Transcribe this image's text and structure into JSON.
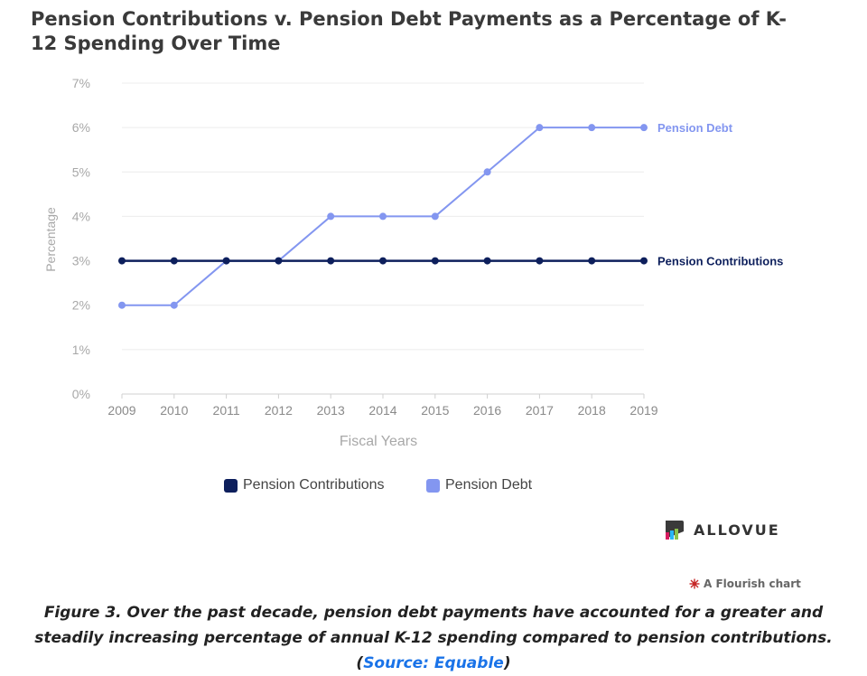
{
  "chart_data": {
    "type": "line",
    "title": "Pension Contributions v. Pension Debt Payments as a Percentage of K-12 Spending Over Time",
    "xlabel": "Fiscal Years",
    "ylabel": "Percentage",
    "x": [
      "2009",
      "2010",
      "2011",
      "2012",
      "2013",
      "2014",
      "2015",
      "2016",
      "2017",
      "2018",
      "2019"
    ],
    "ylim": [
      0,
      7
    ],
    "y_ticks": [
      "0%",
      "1%",
      "2%",
      "3%",
      "4%",
      "5%",
      "6%",
      "7%"
    ],
    "grid": true,
    "legend_position": "bottom",
    "series": [
      {
        "name": "Pension Contributions",
        "color": "#0d1f5c",
        "values": [
          3,
          3,
          3,
          3,
          3,
          3,
          3,
          3,
          3,
          3,
          3
        ]
      },
      {
        "name": "Pension Debt",
        "color": "#8396f0",
        "values": [
          2,
          2,
          3,
          3,
          4,
          4,
          4,
          5,
          6,
          6,
          6
        ]
      }
    ]
  },
  "brand": {
    "name": "ALLOVUE",
    "logo_icon": "allovue-logo-icon"
  },
  "flourish": {
    "label": "A Flourish chart",
    "icon": "flourish-star-icon"
  },
  "caption": {
    "text": "Figure 3. Over the past decade, pension debt payments have accounted for a greater and steadily increasing percentage of annual K-12 spending compared to pension contributions.",
    "source_open": "(",
    "source_link": "Source: Equable",
    "source_close": ")"
  }
}
